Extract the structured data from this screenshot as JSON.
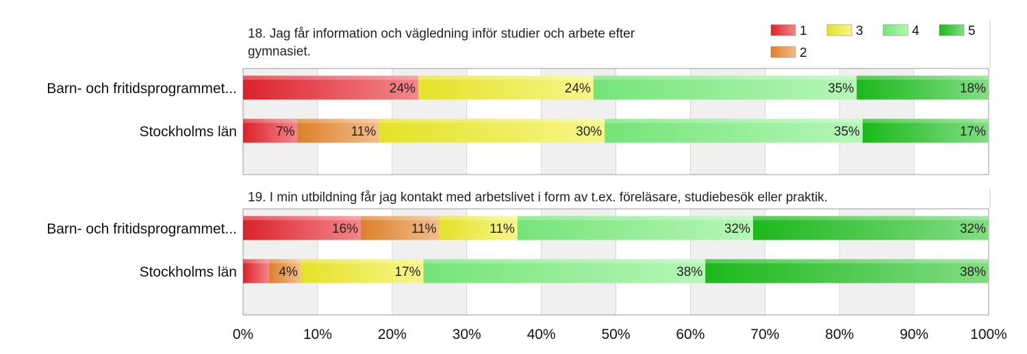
{
  "chart_data": {
    "type": "bar",
    "stacked": "percent",
    "orientation": "horizontal",
    "xlim": [
      0,
      100
    ],
    "x_ticks": [
      "0%",
      "10%",
      "20%",
      "30%",
      "40%",
      "50%",
      "60%",
      "70%",
      "80%",
      "90%",
      "100%"
    ],
    "grid": "alternating vertical bands",
    "legend": {
      "placement": "top-right",
      "entries": [
        {
          "name": "1",
          "color": "#e8242c"
        },
        {
          "name": "3",
          "color": "#f0ee2a"
        },
        {
          "name": "4",
          "color": "#7bf07d"
        },
        {
          "name": "5",
          "color": "#1dc21d"
        },
        {
          "name": "2",
          "color": "#e8872c"
        }
      ]
    },
    "panels": [
      {
        "title": "18. Jag får information och vägledning inför studier och arbete efter gymnasiet.",
        "title_lines": [
          "18. Jag får information och vägledning inför studier och arbete efter",
          "gymnasiet."
        ],
        "categories": [
          "Barn- och fritidsprogrammet...",
          "Stockholms län"
        ],
        "series": [
          {
            "name": "1",
            "values": [
              23.5,
              7.3
            ],
            "labels": [
              "24%",
              "7%"
            ]
          },
          {
            "name": "2",
            "values": [
              0,
              10.9
            ],
            "labels": [
              "",
              "11%"
            ]
          },
          {
            "name": "3",
            "values": [
              23.5,
              30.3
            ],
            "labels": [
              "24%",
              "30%"
            ]
          },
          {
            "name": "4",
            "values": [
              35.3,
              34.6
            ],
            "labels": [
              "35%",
              "35%"
            ]
          },
          {
            "name": "5",
            "values": [
              17.7,
              16.9
            ],
            "labels": [
              "18%",
              "17%"
            ]
          }
        ]
      },
      {
        "title": "19. I min utbildning får jag kontakt med arbetslivet i form av t.ex. föreläsare, studiebesök eller praktik.",
        "title_lines": [
          "19. I min utbildning får jag kontakt med arbetslivet i form av t.ex. föreläsare, studiebesök eller praktik."
        ],
        "categories": [
          "Barn- och fritidsprogrammet...",
          "Stockholms län"
        ],
        "series": [
          {
            "name": "1",
            "values": [
              15.8,
              3.5
            ],
            "labels": [
              "16%",
              ""
            ]
          },
          {
            "name": "2",
            "values": [
              10.5,
              4.2
            ],
            "labels": [
              "11%",
              "4%"
            ]
          },
          {
            "name": "3",
            "values": [
              10.5,
              16.5
            ],
            "labels": [
              "11%",
              "17%"
            ]
          },
          {
            "name": "4",
            "values": [
              31.6,
              37.8
            ],
            "labels": [
              "32%",
              "38%"
            ]
          },
          {
            "name": "5",
            "values": [
              31.6,
              38.0
            ],
            "labels": [
              "32%",
              "38%"
            ]
          }
        ]
      }
    ]
  }
}
